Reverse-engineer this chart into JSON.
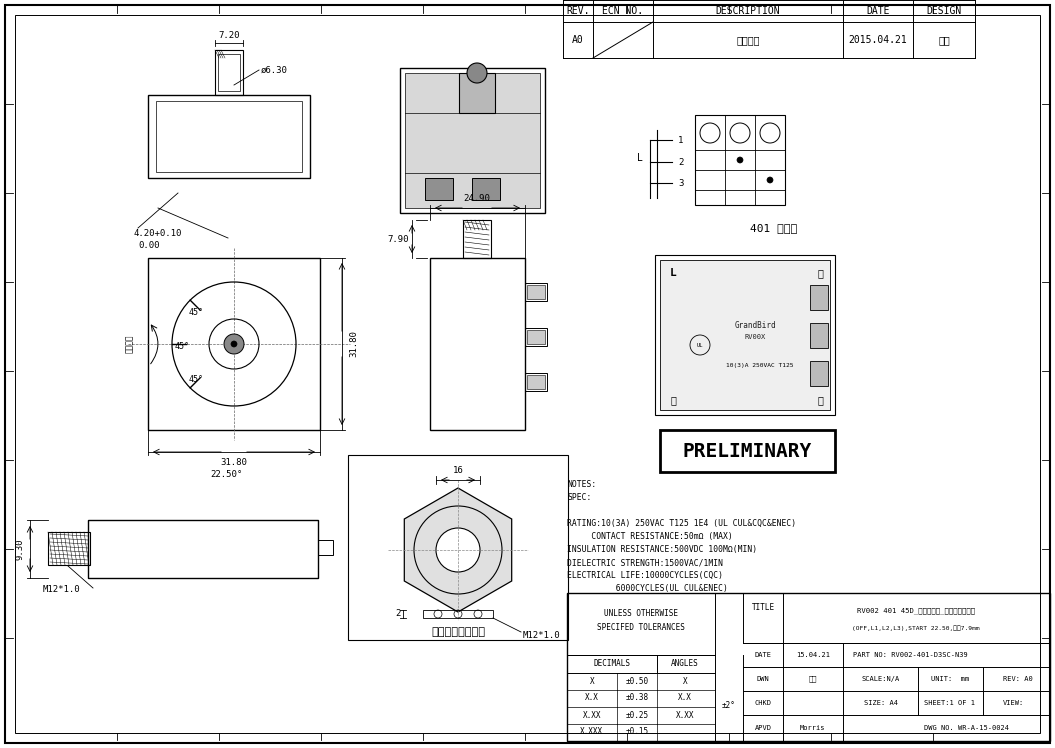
{
  "notes_lines": [
    "NOTES:",
    "SPEC:",
    "",
    "RATING:10(3A) 250VAC T125 1E4 (UL CUL&CQC&ENEC)",
    "     CONTACT RESISTANCE:50mΩ (MAX)",
    "INSULATION RESISTANCE:500VDC 100MΩ(MIN)",
    "DIELECTRIC STRENGTH:1500VAC/1MIN",
    "ELECTRICAL LIFE:10000CYCLES(CQC)",
    "          6000CYCLES(UL CUL&ENEC)"
  ],
  "preliminary_text": "PRELIMINARY",
  "circuit_label": "401 电路图",
  "title_rev": "REV.",
  "title_ecn": "ECN NO.",
  "title_desc": "DESCRIPTION",
  "title_date": "DATE",
  "title_design": "DESIGN",
  "row_rev": "A0",
  "row_ecn": "",
  "row_desc": "新版发行",
  "row_date": "2015.04.21",
  "row_design": "刘玲",
  "bt_unless1": "UNLESS OTHERWISE",
  "bt_unless2": "SPECIFED TOLERANCES",
  "bt_decimals": "DECIMALS",
  "bt_angles": "ANGLES",
  "bt_rows": [
    [
      "X",
      "±0.50",
      "X"
    ],
    [
      "X.X",
      "±0.38",
      "X.X"
    ],
    [
      "X.XX",
      "±0.25",
      "X.XX"
    ],
    [
      "X.XXX",
      "±0.15",
      ""
    ]
  ],
  "bt_angles_val": "±2°",
  "bt_title_label": "TITLE",
  "bt_title_val": "RV002 401 45D_上盖外螺纹_开关成品客户图",
  "bt_title_sub": "(OFF,L1,L2,L3),START 22.50,转距7.9mm",
  "bt_date_label": "DATE",
  "bt_date_val": "15.04.21",
  "bt_partno_label": "PART NO:",
  "bt_partno_val": "RV002-401-D3SC-N39",
  "bt_dwn_label": "DWN",
  "bt_dwn_val": "刘玲",
  "bt_scale_label": "SCALE:N/A",
  "bt_unit_label": "UNIT:  mm",
  "bt_rev_label": "REV: A0",
  "bt_chkd_label": "CHKD",
  "bt_size_label": "SIZE: A4",
  "bt_sheet_label": "SHEET:1 OF 1",
  "bt_view_label": "VIEW:",
  "bt_apvd_label": "APVD",
  "bt_apvd_val": "Morris",
  "bt_dwg_label": "DWG NO. WR-A-15-0024"
}
